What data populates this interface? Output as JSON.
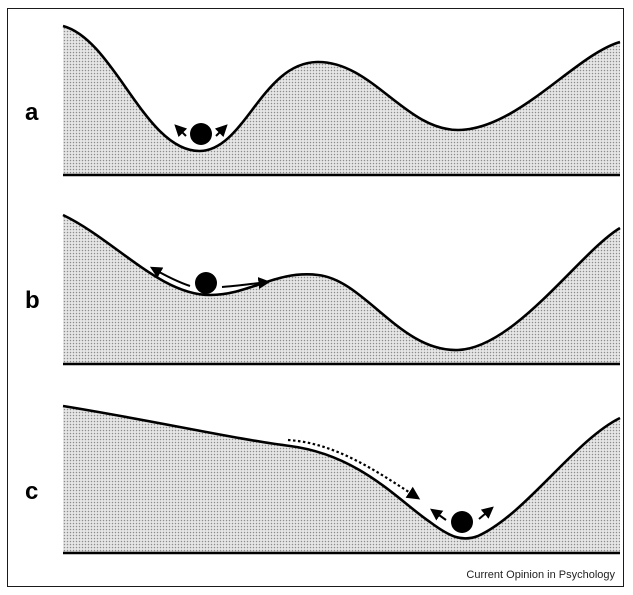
{
  "figure": {
    "panels": [
      {
        "id": "a",
        "label": "a"
      },
      {
        "id": "b",
        "label": "b"
      },
      {
        "id": "c",
        "label": "c"
      }
    ],
    "credit": "Current Opinion in Psychology"
  },
  "colors": {
    "ink": "#000000",
    "shade_dot": "#8c8c8c",
    "shade_bg": "#e6e6e6"
  }
}
